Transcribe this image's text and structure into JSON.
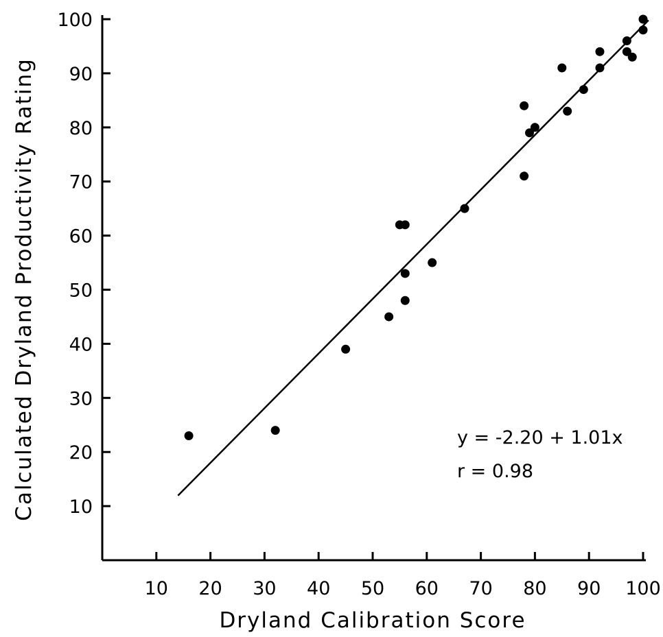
{
  "chart_data": {
    "type": "scatter",
    "xlabel": "Dryland Calibration Score",
    "ylabel": "Calculated Dryland Productivity Rating",
    "xlim": [
      0,
      100
    ],
    "ylim": [
      0,
      100
    ],
    "x_ticks": [
      10,
      20,
      30,
      40,
      50,
      60,
      70,
      80,
      90,
      100
    ],
    "y_ticks": [
      10,
      20,
      30,
      40,
      50,
      60,
      70,
      80,
      90,
      100
    ],
    "grid": false,
    "legend": "none",
    "points": [
      {
        "x": 16,
        "y": 23
      },
      {
        "x": 32,
        "y": 24
      },
      {
        "x": 45,
        "y": 39
      },
      {
        "x": 53,
        "y": 45
      },
      {
        "x": 55,
        "y": 62
      },
      {
        "x": 56,
        "y": 62
      },
      {
        "x": 56,
        "y": 53
      },
      {
        "x": 56,
        "y": 48
      },
      {
        "x": 61,
        "y": 55
      },
      {
        "x": 67,
        "y": 65
      },
      {
        "x": 78,
        "y": 84
      },
      {
        "x": 78,
        "y": 71
      },
      {
        "x": 79,
        "y": 79
      },
      {
        "x": 80,
        "y": 80
      },
      {
        "x": 85,
        "y": 91
      },
      {
        "x": 86,
        "y": 83
      },
      {
        "x": 89,
        "y": 87
      },
      {
        "x": 92,
        "y": 94
      },
      {
        "x": 92,
        "y": 91
      },
      {
        "x": 97,
        "y": 96
      },
      {
        "x": 97,
        "y": 94
      },
      {
        "x": 98,
        "y": 93
      },
      {
        "x": 100,
        "y": 100
      },
      {
        "x": 100,
        "y": 98
      }
    ],
    "regression_line": {
      "x_start": 14,
      "x_end": 101,
      "intercept": -2.2,
      "slope": 1.01
    },
    "annotations": [
      "y = -2.20 + 1.01x",
      "r = 0.98"
    ]
  }
}
